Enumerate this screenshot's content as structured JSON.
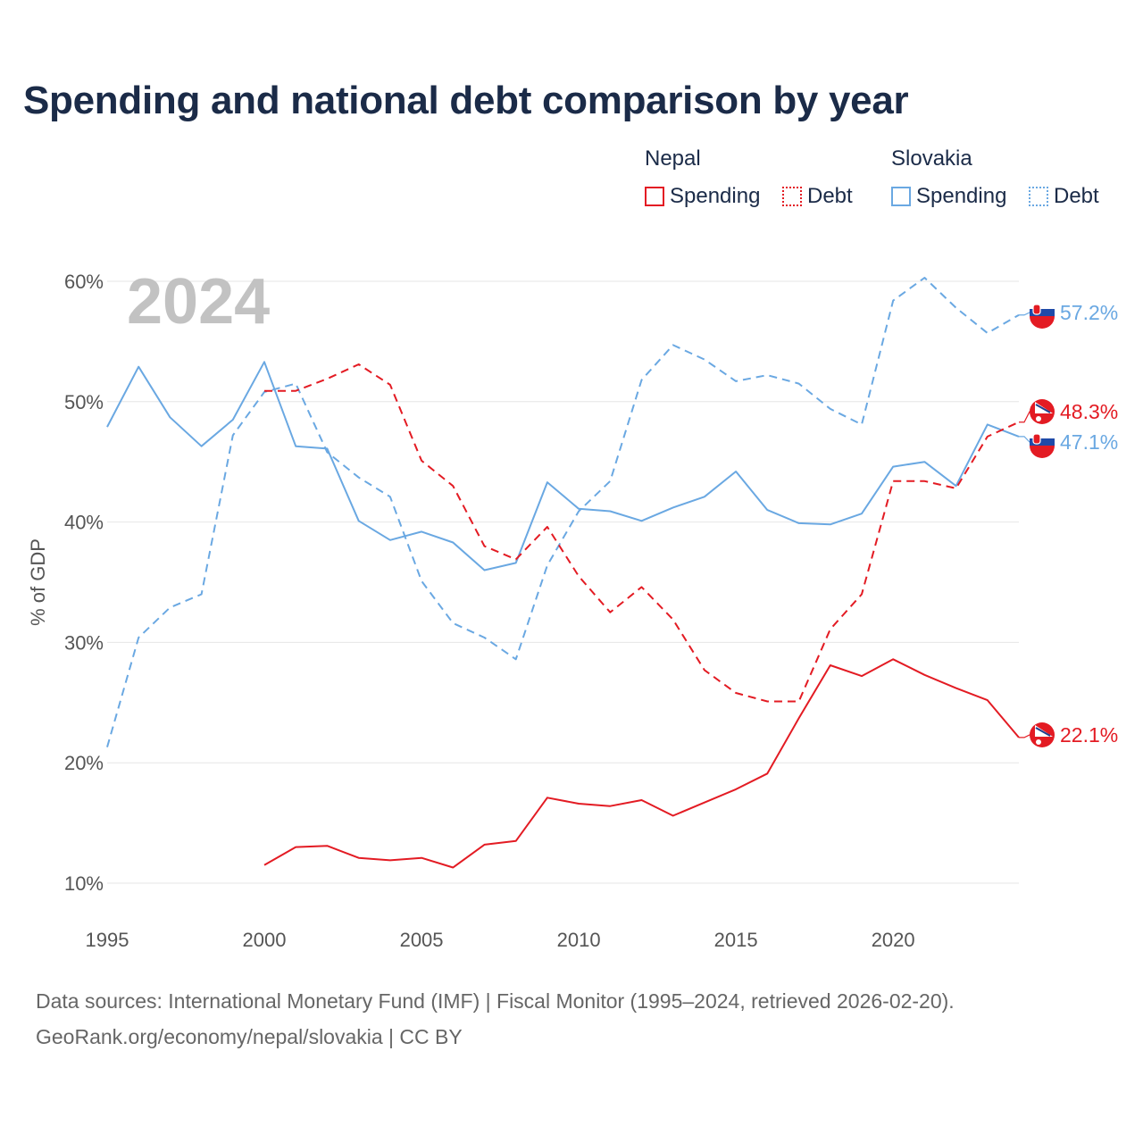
{
  "title": "Spending and national debt comparison by year",
  "legend": {
    "groups": [
      {
        "country": "Nepal",
        "items": [
          {
            "label": "Spending",
            "style": "solid",
            "color": "#e31b23"
          },
          {
            "label": "Debt",
            "style": "dotted",
            "color": "#e31b23"
          }
        ]
      },
      {
        "country": "Slovakia",
        "items": [
          {
            "label": "Spending",
            "style": "solid",
            "color": "#6aa8e2"
          },
          {
            "label": "Debt",
            "style": "dotted",
            "color": "#6aa8e2"
          }
        ]
      }
    ]
  },
  "year_watermark": "2024",
  "footer": {
    "line1": "Data sources: International Monetary Fund (IMF) | Fiscal Monitor (1995–2024, retrieved 2026-02-20).",
    "line2": "GeoRank.org/economy/nepal/slovakia | CC BY"
  },
  "colors": {
    "nepal": "#e31b23",
    "slovakia": "#6aa8e2",
    "grid": "#e6e6e6"
  },
  "chart_data": {
    "type": "line",
    "title": "Spending and national debt comparison by year",
    "xlabel": "",
    "ylabel": "% of GDP",
    "xlim": [
      1995,
      2024
    ],
    "ylim": [
      10,
      60
    ],
    "xticks": [
      1995,
      2000,
      2005,
      2010,
      2015,
      2020
    ],
    "yticks": [
      10,
      20,
      30,
      40,
      50,
      60
    ],
    "ytick_labels": [
      "10%",
      "20%",
      "30%",
      "40%",
      "50%",
      "60%"
    ],
    "series": [
      {
        "name": "Slovakia Spending",
        "country": "Slovakia",
        "color": "#6aa8e2",
        "dash": "solid",
        "x": [
          1995,
          1996,
          1997,
          1998,
          1999,
          2000,
          2001,
          2002,
          2003,
          2004,
          2005,
          2006,
          2007,
          2008,
          2009,
          2010,
          2011,
          2012,
          2013,
          2014,
          2015,
          2016,
          2017,
          2018,
          2019,
          2020,
          2021,
          2022,
          2023,
          2024
        ],
        "values": [
          47.9,
          52.9,
          48.7,
          46.3,
          48.5,
          53.3,
          46.3,
          46.1,
          40.1,
          38.5,
          39.2,
          38.3,
          36.0,
          36.6,
          43.3,
          41.1,
          40.9,
          40.1,
          41.2,
          42.1,
          44.2,
          41.0,
          39.9,
          39.8,
          40.7,
          44.6,
          45.0,
          43.0,
          48.1,
          47.1
        ],
        "end_label": "47.1%"
      },
      {
        "name": "Slovakia Debt",
        "country": "Slovakia",
        "color": "#6aa8e2",
        "dash": "dashed",
        "x": [
          1995,
          1996,
          1997,
          1998,
          1999,
          2000,
          2001,
          2002,
          2003,
          2004,
          2005,
          2006,
          2007,
          2008,
          2009,
          2010,
          2011,
          2012,
          2013,
          2014,
          2015,
          2016,
          2017,
          2018,
          2019,
          2020,
          2021,
          2022,
          2023,
          2024
        ],
        "values": [
          21.3,
          30.4,
          32.9,
          34.0,
          47.2,
          50.8,
          51.5,
          45.8,
          43.7,
          42.1,
          35.1,
          31.6,
          30.4,
          28.6,
          36.4,
          40.9,
          43.4,
          51.8,
          54.7,
          53.5,
          51.7,
          52.2,
          51.5,
          49.4,
          48.1,
          58.4,
          60.3,
          57.8,
          55.7,
          57.2
        ],
        "end_label": "57.2%"
      },
      {
        "name": "Nepal Spending",
        "country": "Nepal",
        "color": "#e31b23",
        "dash": "solid",
        "x": [
          2000,
          2001,
          2002,
          2003,
          2004,
          2005,
          2006,
          2007,
          2008,
          2009,
          2010,
          2011,
          2012,
          2013,
          2014,
          2015,
          2016,
          2017,
          2018,
          2019,
          2020,
          2021,
          2022,
          2023,
          2024
        ],
        "values": [
          11.5,
          13.0,
          13.1,
          12.1,
          11.9,
          12.1,
          11.3,
          13.2,
          13.5,
          17.1,
          16.6,
          16.4,
          16.9,
          15.6,
          16.7,
          17.8,
          19.1,
          23.7,
          28.1,
          27.2,
          28.6,
          27.3,
          26.2,
          25.2,
          22.1
        ],
        "end_label": "22.1%"
      },
      {
        "name": "Nepal Debt",
        "country": "Nepal",
        "color": "#e31b23",
        "dash": "dashed",
        "x": [
          2000,
          2001,
          2002,
          2003,
          2004,
          2005,
          2006,
          2007,
          2008,
          2009,
          2010,
          2011,
          2012,
          2013,
          2014,
          2015,
          2016,
          2017,
          2018,
          2019,
          2020,
          2021,
          2022,
          2023,
          2024
        ],
        "values": [
          50.9,
          50.9,
          51.9,
          53.1,
          51.4,
          45.1,
          43.0,
          38.0,
          36.9,
          39.6,
          35.5,
          32.5,
          34.6,
          31.9,
          27.7,
          25.8,
          25.1,
          25.1,
          31.1,
          34.0,
          43.4,
          43.4,
          42.8,
          47.1,
          48.3
        ],
        "end_label": "48.3%"
      }
    ]
  }
}
